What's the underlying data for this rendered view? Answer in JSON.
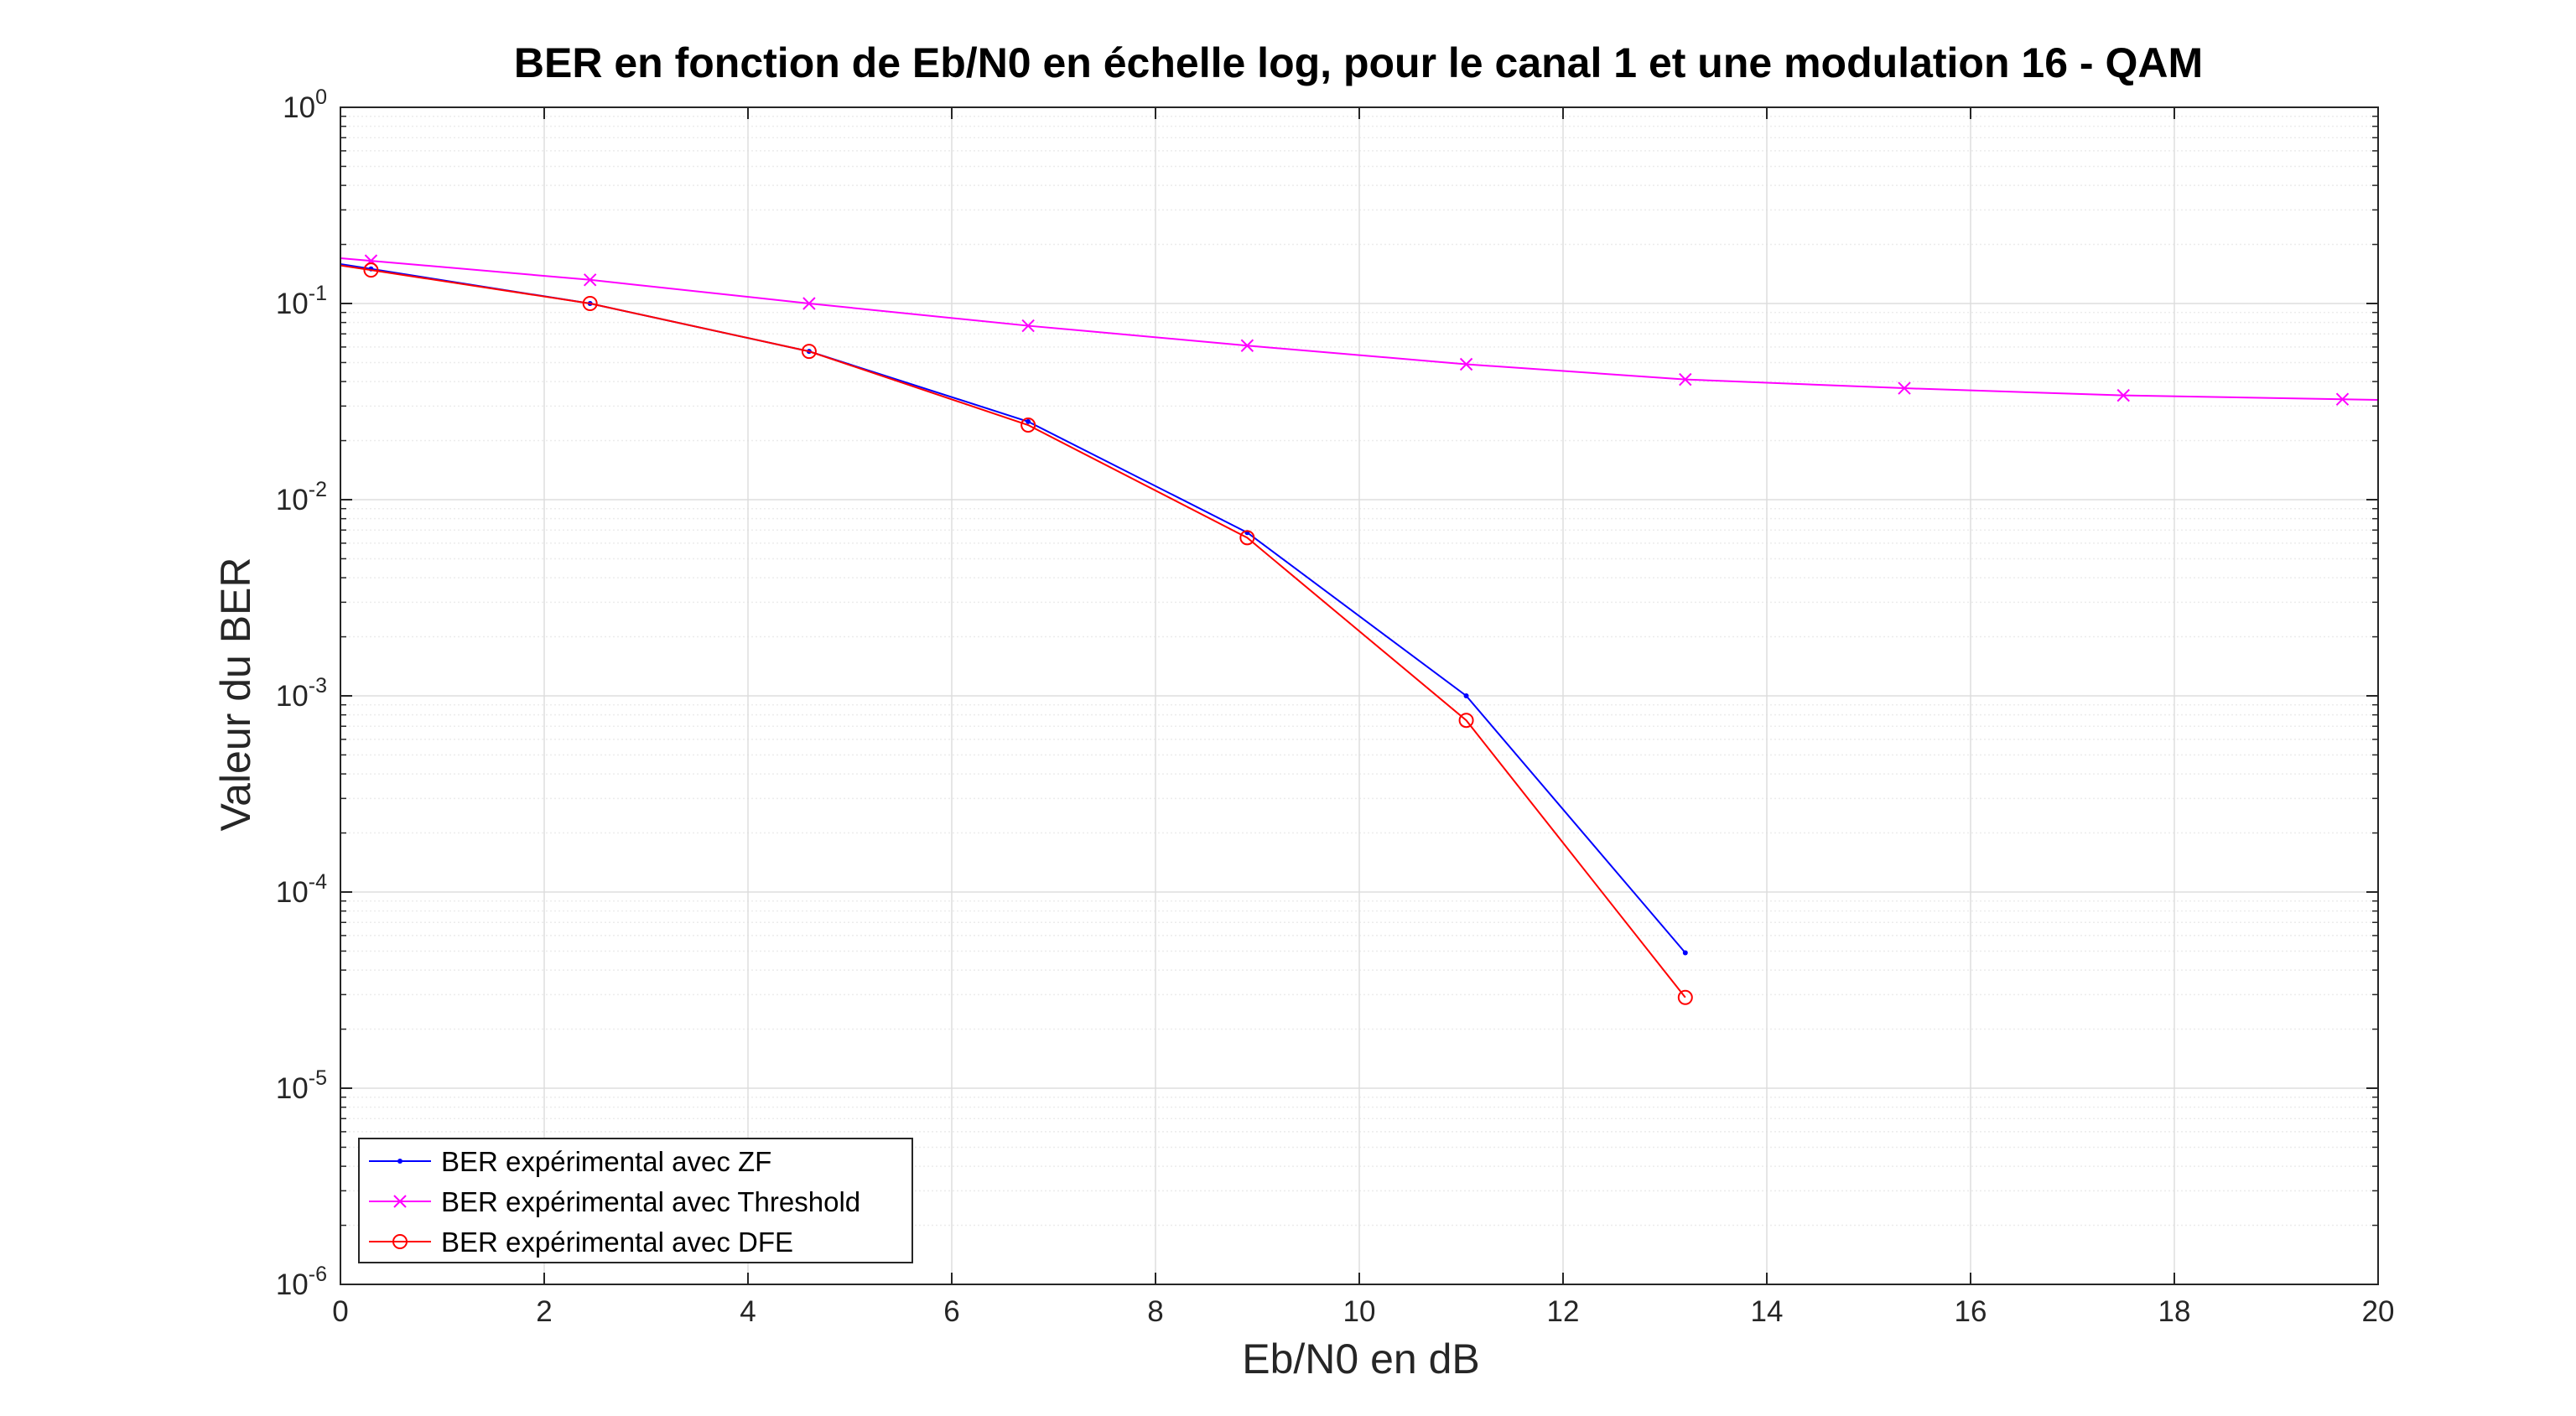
{
  "chart_data": {
    "type": "line",
    "title": "BER en fonction de Eb/N0 en échelle log, pour le canal 1 et une modulation 16 - QAM",
    "xlabel": "Eb/N0 en dB",
    "ylabel": "Valeur du BER",
    "xlim": [
      0,
      20
    ],
    "ylim": [
      1e-06,
      1
    ],
    "yscale": "log",
    "grid": true,
    "minor_grid": true,
    "legend_position": "bottom-left",
    "x_ticks": [
      "0",
      "2",
      "4",
      "6",
      "8",
      "10",
      "12",
      "14",
      "16",
      "18",
      "20"
    ],
    "y_ticks": [
      {
        "base": "10",
        "exp": "-6"
      },
      {
        "base": "10",
        "exp": "-5"
      },
      {
        "base": "10",
        "exp": "-4"
      },
      {
        "base": "10",
        "exp": "-3"
      },
      {
        "base": "10",
        "exp": "-2"
      },
      {
        "base": "10",
        "exp": "-1"
      },
      {
        "base": "10",
        "exp": "0"
      }
    ],
    "series": [
      {
        "name": "BER expérimental avec ZF",
        "color": "#0000ff",
        "marker": "dot",
        "x": [
          0.3,
          2.45,
          4.6,
          6.75,
          8.9,
          11.05,
          13.2
        ],
        "y": [
          0.15,
          0.1,
          0.057,
          0.025,
          0.0068,
          0.001,
          4.9e-05
        ]
      },
      {
        "name": "BER expérimental avec Threshold",
        "color": "#ff00ff",
        "marker": "x",
        "x": [
          0.3,
          2.45,
          4.6,
          6.75,
          8.9,
          11.05,
          13.2,
          15.35,
          17.5,
          19.65
        ],
        "y": [
          0.165,
          0.132,
          0.1,
          0.077,
          0.061,
          0.049,
          0.041,
          0.037,
          0.034,
          0.0325
        ]
      },
      {
        "name": "BER expérimental avec DFE",
        "color": "#ff0000",
        "marker": "circle",
        "x": [
          0.3,
          2.45,
          4.6,
          6.75,
          8.9,
          11.05,
          13.2
        ],
        "y": [
          0.148,
          0.1,
          0.057,
          0.024,
          0.0064,
          0.00075,
          2.9e-05
        ]
      }
    ]
  }
}
